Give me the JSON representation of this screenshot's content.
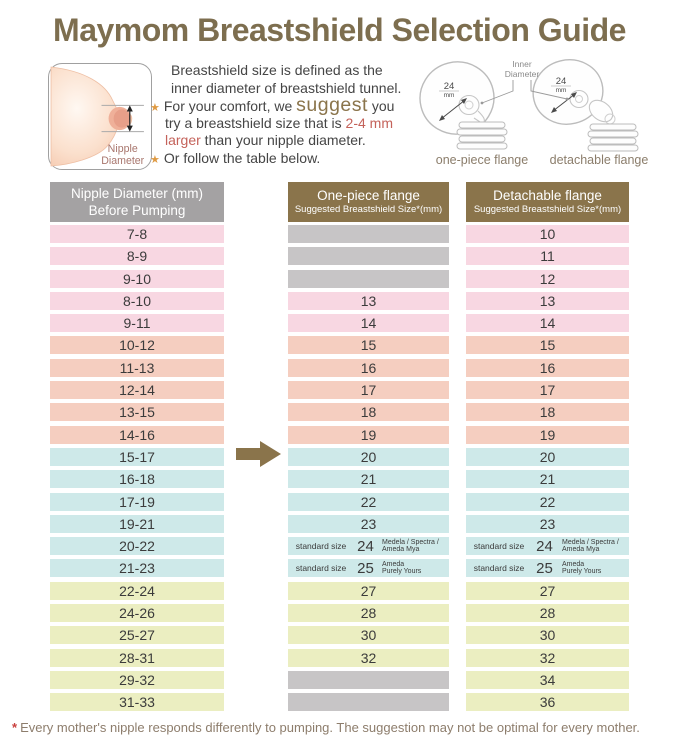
{
  "title": "Maymom Breastshield Selection Guide",
  "colors": {
    "brand_brown": "#8a744b",
    "title": "#7d6e4f",
    "header_gray": "#a4a2a3",
    "pink": "#f8d7e2",
    "salmon": "#f5cec0",
    "blue": "#cee9e9",
    "yellow": "#ebeec1",
    "empty_gray": "#c7c5c6",
    "highlight_red": "#c4625a",
    "footnote": "#8d7d6c",
    "star_orange": "#df9a43",
    "row_text": "#3b3b3b"
  },
  "info": {
    "star_glyph": "★",
    "illustration": {
      "label_line1": "Nipple",
      "label_line2": "Diameter"
    },
    "lines": [
      {
        "indent": "indent",
        "star": false,
        "segments": [
          {
            "t": "Breastshield size is defined as the"
          }
        ]
      },
      {
        "indent": "indent",
        "star": false,
        "segments": [
          {
            "t": "inner diameter of breastshield tunnel."
          }
        ]
      },
      {
        "indent": "",
        "star": true,
        "segments": [
          {
            "t": "For your comfort, we "
          },
          {
            "t": "suggest",
            "s": "suggest"
          },
          {
            "t": " you"
          }
        ]
      },
      {
        "indent": "cont",
        "star": false,
        "segments": [
          {
            "t": "try a breastshield size that is "
          },
          {
            "t": "2-4 mm",
            "s": "red"
          }
        ]
      },
      {
        "indent": "cont",
        "star": false,
        "segments": [
          {
            "t": "larger",
            "s": "red"
          },
          {
            "t": " than your nipple diameter."
          }
        ]
      },
      {
        "indent": "",
        "star": true,
        "segments": [
          {
            "t": "Or follow the table below."
          }
        ]
      }
    ],
    "flanges": {
      "inner_diameter_line1": "Inner",
      "inner_diameter_line2": "Diameter",
      "size_top": "24",
      "size_bottom": "mm",
      "one_piece_label": "one-piece flange",
      "detachable_label": "detachable flange"
    }
  },
  "table": {
    "headers": {
      "col1_line1": "Nipple Diameter (mm)",
      "col1_line2": "Before Pumping",
      "col2_line1": "One-piece flange",
      "col2_line2": "Suggested Breastshield Size*(mm)",
      "col3_line1": "Detachable flange",
      "col3_line2": "Suggested Breastshield Size*(mm)"
    },
    "rows": [
      {
        "range": "7-8",
        "one_piece": null,
        "detachable": "10",
        "tone": "pink"
      },
      {
        "range": "8-9",
        "one_piece": null,
        "detachable": "11",
        "tone": "pink"
      },
      {
        "range": "9-10",
        "one_piece": null,
        "detachable": "12",
        "tone": "pink"
      },
      {
        "range": "8-10",
        "one_piece": "13",
        "detachable": "13",
        "tone": "pink"
      },
      {
        "range": "9-11",
        "one_piece": "14",
        "detachable": "14",
        "tone": "pink"
      },
      {
        "range": "10-12",
        "one_piece": "15",
        "detachable": "15",
        "tone": "salmon"
      },
      {
        "range": "11-13",
        "one_piece": "16",
        "detachable": "16",
        "tone": "salmon"
      },
      {
        "range": "12-14",
        "one_piece": "17",
        "detachable": "17",
        "tone": "salmon"
      },
      {
        "range": "13-15",
        "one_piece": "18",
        "detachable": "18",
        "tone": "salmon"
      },
      {
        "range": "14-16",
        "one_piece": "19",
        "detachable": "19",
        "tone": "salmon"
      },
      {
        "range": "15-17",
        "one_piece": "20",
        "detachable": "20",
        "tone": "blue"
      },
      {
        "range": "16-18",
        "one_piece": "21",
        "detachable": "21",
        "tone": "blue"
      },
      {
        "range": "17-19",
        "one_piece": "22",
        "detachable": "22",
        "tone": "blue"
      },
      {
        "range": "19-21",
        "one_piece": "23",
        "detachable": "23",
        "tone": "blue"
      },
      {
        "range": "20-22",
        "one_piece": {
          "prefix": "standard size",
          "size": "24",
          "brands": [
            "Medela / Spectra /",
            "Ameda Mya"
          ]
        },
        "detachable": {
          "prefix": "standard size",
          "size": "24",
          "brands": [
            "Medela / Spectra /",
            "Ameda Mya"
          ]
        },
        "tone": "blue"
      },
      {
        "range": "21-23",
        "one_piece": {
          "prefix": "standard size",
          "size": "25",
          "brands": [
            "Ameda",
            "Purely Yours"
          ]
        },
        "detachable": {
          "prefix": "standard size",
          "size": "25",
          "brands": [
            "Ameda",
            "Purely Yours"
          ]
        },
        "tone": "blue"
      },
      {
        "range": "22-24",
        "one_piece": "27",
        "detachable": "27",
        "tone": "yellow"
      },
      {
        "range": "24-26",
        "one_piece": "28",
        "detachable": "28",
        "tone": "yellow"
      },
      {
        "range": "25-27",
        "one_piece": "30",
        "detachable": "30",
        "tone": "yellow"
      },
      {
        "range": "28-31",
        "one_piece": "32",
        "detachable": "32",
        "tone": "yellow"
      },
      {
        "range": "29-32",
        "one_piece": null,
        "detachable": "34",
        "tone": "yellow"
      },
      {
        "range": "31-33",
        "one_piece": null,
        "detachable": "36",
        "tone": "yellow"
      }
    ]
  },
  "footnote": {
    "star": "*",
    "text": "Every mother's nipple responds differently to pumping. The suggestion may not be optimal for every mother."
  }
}
